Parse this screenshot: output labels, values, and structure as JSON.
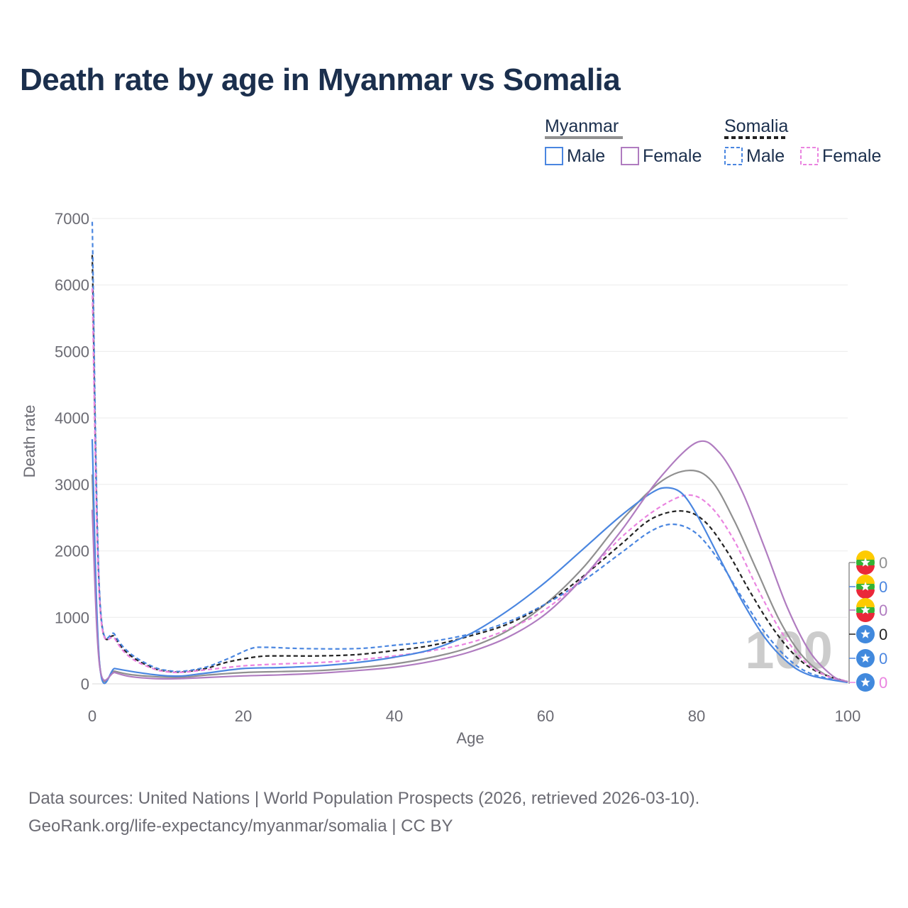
{
  "chart_data": {
    "type": "line",
    "title": "Death rate by age in Myanmar vs Somalia",
    "xlabel": "Age",
    "ylabel": "Death rate",
    "xlim": [
      0,
      100
    ],
    "ylim": [
      0,
      7000
    ],
    "xticks": [
      0,
      20,
      40,
      60,
      80,
      100
    ],
    "yticks": [
      0,
      1000,
      2000,
      3000,
      4000,
      5000,
      6000,
      7000
    ],
    "grid": true,
    "year_watermark": "100",
    "legend": {
      "position": "top-right",
      "groups": [
        {
          "country": "Myanmar",
          "style": "solid",
          "items": [
            "Male",
            "Female"
          ]
        },
        {
          "country": "Somalia",
          "style": "dashed",
          "items": [
            "Male",
            "Female"
          ]
        }
      ]
    },
    "series": [
      {
        "name": "Myanmar",
        "style": "solid",
        "color": "#909090",
        "points": [
          [
            0,
            3150
          ],
          [
            1,
            270
          ],
          [
            3,
            190
          ],
          [
            5,
            140
          ],
          [
            8,
            110
          ],
          [
            10,
            100
          ],
          [
            12,
            100
          ],
          [
            15,
            130
          ],
          [
            20,
            170
          ],
          [
            25,
            185
          ],
          [
            30,
            200
          ],
          [
            35,
            240
          ],
          [
            40,
            300
          ],
          [
            45,
            400
          ],
          [
            50,
            550
          ],
          [
            55,
            800
          ],
          [
            60,
            1200
          ],
          [
            65,
            1750
          ],
          [
            70,
            2450
          ],
          [
            75,
            3020
          ],
          [
            79,
            3210
          ],
          [
            82,
            3050
          ],
          [
            85,
            2450
          ],
          [
            88,
            1700
          ],
          [
            91,
            950
          ],
          [
            94,
            420
          ],
          [
            97,
            140
          ],
          [
            100,
            20
          ]
        ],
        "end_value": "0"
      },
      {
        "name": "Myanmar Male",
        "style": "solid",
        "color": "#4a86e0",
        "points": [
          [
            0,
            3680
          ],
          [
            1,
            270
          ],
          [
            3,
            230
          ],
          [
            5,
            190
          ],
          [
            8,
            140
          ],
          [
            10,
            120
          ],
          [
            12,
            120
          ],
          [
            15,
            160
          ],
          [
            20,
            230
          ],
          [
            25,
            245
          ],
          [
            30,
            270
          ],
          [
            35,
            320
          ],
          [
            40,
            400
          ],
          [
            45,
            520
          ],
          [
            50,
            750
          ],
          [
            55,
            1100
          ],
          [
            60,
            1530
          ],
          [
            65,
            2030
          ],
          [
            70,
            2530
          ],
          [
            74,
            2870
          ],
          [
            76,
            2950
          ],
          [
            78,
            2870
          ],
          [
            80,
            2550
          ],
          [
            83,
            1900
          ],
          [
            86,
            1250
          ],
          [
            89,
            700
          ],
          [
            92,
            330
          ],
          [
            95,
            130
          ],
          [
            100,
            20
          ]
        ],
        "end_value": "0"
      },
      {
        "name": "Myanmar Female",
        "style": "solid",
        "color": "#b07cc0",
        "points": [
          [
            0,
            2620
          ],
          [
            1,
            250
          ],
          [
            3,
            170
          ],
          [
            5,
            110
          ],
          [
            8,
            80
          ],
          [
            10,
            75
          ],
          [
            12,
            80
          ],
          [
            15,
            95
          ],
          [
            20,
            120
          ],
          [
            25,
            135
          ],
          [
            30,
            160
          ],
          [
            35,
            200
          ],
          [
            40,
            250
          ],
          [
            45,
            340
          ],
          [
            50,
            480
          ],
          [
            55,
            700
          ],
          [
            60,
            1050
          ],
          [
            65,
            1600
          ],
          [
            70,
            2300
          ],
          [
            75,
            3080
          ],
          [
            80,
            3630
          ],
          [
            83,
            3480
          ],
          [
            86,
            2900
          ],
          [
            89,
            2050
          ],
          [
            92,
            1150
          ],
          [
            95,
            480
          ],
          [
            98,
            120
          ],
          [
            100,
            30
          ]
        ],
        "end_value": "0"
      },
      {
        "name": "Somalia",
        "style": "dashed",
        "color": "#222222",
        "points": [
          [
            0,
            6450
          ],
          [
            1,
            1250
          ],
          [
            3,
            700
          ],
          [
            5,
            430
          ],
          [
            8,
            240
          ],
          [
            10,
            190
          ],
          [
            12,
            180
          ],
          [
            15,
            230
          ],
          [
            18,
            330
          ],
          [
            22,
            410
          ],
          [
            25,
            420
          ],
          [
            30,
            420
          ],
          [
            35,
            440
          ],
          [
            40,
            500
          ],
          [
            45,
            580
          ],
          [
            50,
            720
          ],
          [
            55,
            900
          ],
          [
            60,
            1200
          ],
          [
            65,
            1620
          ],
          [
            70,
            2100
          ],
          [
            74,
            2480
          ],
          [
            78,
            2600
          ],
          [
            81,
            2450
          ],
          [
            84,
            2000
          ],
          [
            87,
            1400
          ],
          [
            90,
            850
          ],
          [
            93,
            430
          ],
          [
            96,
            180
          ],
          [
            100,
            30
          ]
        ],
        "end_value": "0"
      },
      {
        "name": "Somalia Male",
        "style": "dashed",
        "color": "#4a86e0",
        "points": [
          [
            0,
            6950
          ],
          [
            1,
            1300
          ],
          [
            3,
            740
          ],
          [
            5,
            460
          ],
          [
            8,
            260
          ],
          [
            10,
            200
          ],
          [
            12,
            190
          ],
          [
            15,
            250
          ],
          [
            18,
            380
          ],
          [
            21,
            530
          ],
          [
            23,
            550
          ],
          [
            28,
            530
          ],
          [
            35,
            530
          ],
          [
            40,
            580
          ],
          [
            45,
            640
          ],
          [
            50,
            750
          ],
          [
            55,
            930
          ],
          [
            60,
            1200
          ],
          [
            65,
            1550
          ],
          [
            70,
            1970
          ],
          [
            74,
            2300
          ],
          [
            77,
            2400
          ],
          [
            80,
            2260
          ],
          [
            83,
            1850
          ],
          [
            86,
            1300
          ],
          [
            89,
            780
          ],
          [
            92,
            390
          ],
          [
            95,
            160
          ],
          [
            100,
            20
          ]
        ],
        "end_value": "0"
      },
      {
        "name": "Somalia Female",
        "style": "dashed",
        "color": "#ea84e0",
        "points": [
          [
            0,
            5950
          ],
          [
            1,
            1200
          ],
          [
            3,
            680
          ],
          [
            5,
            400
          ],
          [
            8,
            230
          ],
          [
            10,
            180
          ],
          [
            12,
            175
          ],
          [
            15,
            210
          ],
          [
            20,
            270
          ],
          [
            25,
            300
          ],
          [
            30,
            320
          ],
          [
            35,
            360
          ],
          [
            40,
            420
          ],
          [
            45,
            500
          ],
          [
            50,
            620
          ],
          [
            55,
            820
          ],
          [
            60,
            1120
          ],
          [
            65,
            1600
          ],
          [
            70,
            2200
          ],
          [
            75,
            2650
          ],
          [
            79,
            2840
          ],
          [
            82,
            2650
          ],
          [
            85,
            2150
          ],
          [
            88,
            1450
          ],
          [
            91,
            820
          ],
          [
            94,
            370
          ],
          [
            97,
            130
          ],
          [
            100,
            40
          ]
        ],
        "end_value": "0"
      }
    ]
  },
  "footer": {
    "line1": "Data sources: United Nations | World Population Prospects (2026, retrieved 2026-03-10).",
    "line2": "GeoRank.org/life-expectancy/myanmar/somalia | CC BY"
  }
}
